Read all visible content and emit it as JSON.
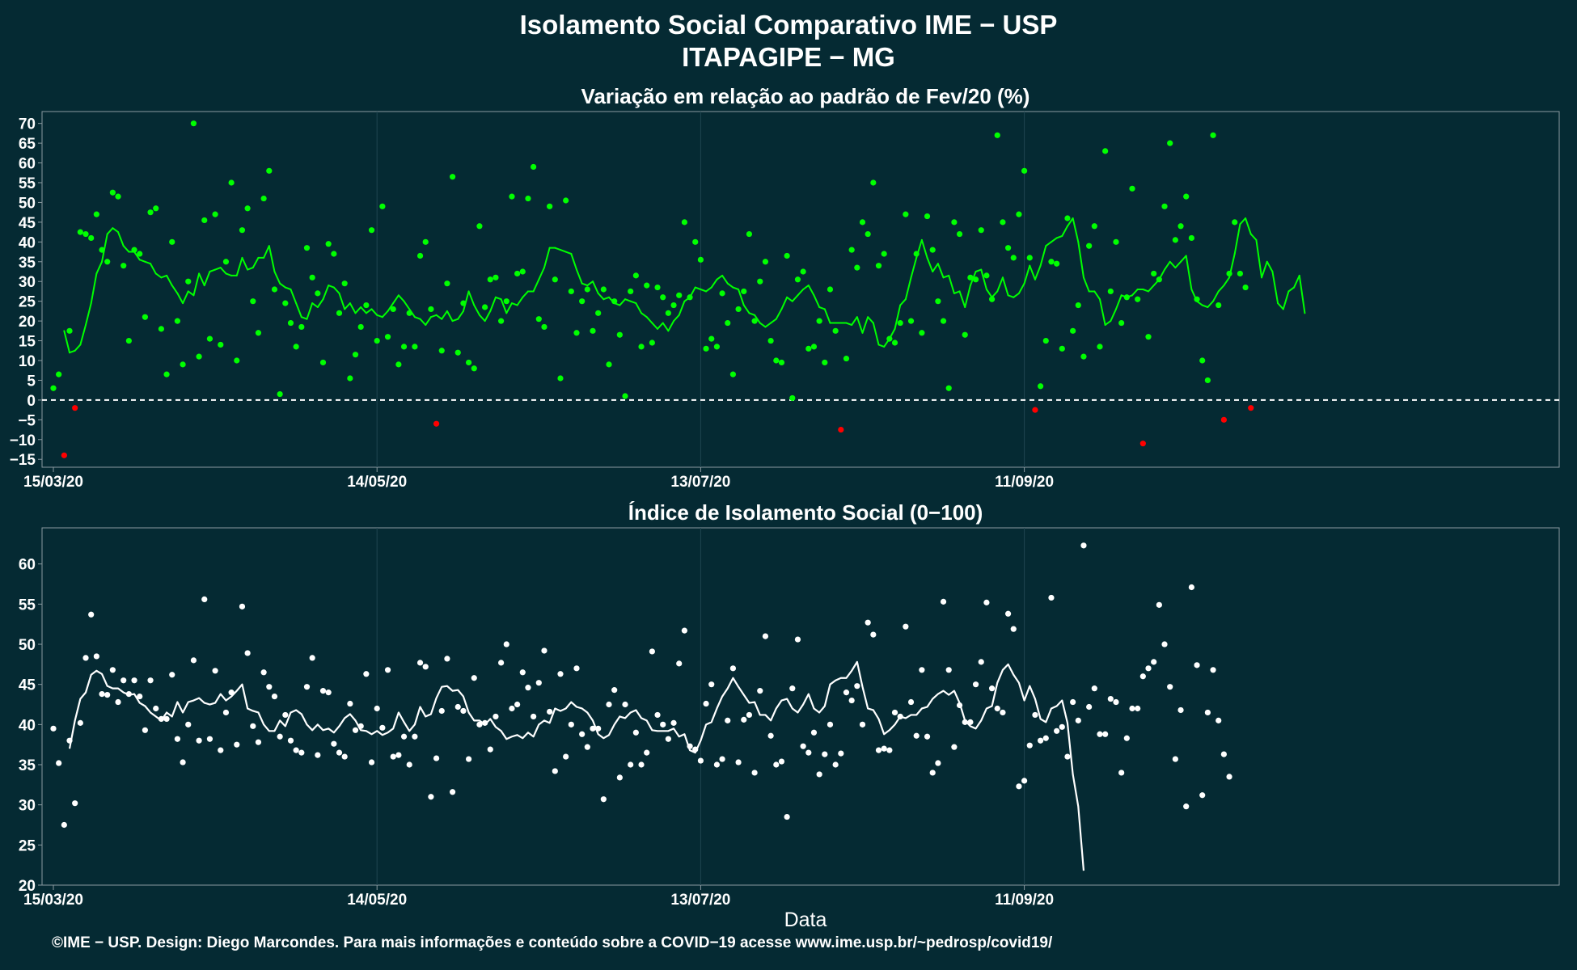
{
  "title": "Isolamento Social Comparativo IME − USP",
  "subtitle": "ITAPAGIPE − MG",
  "footer": "©IME − USP. Design: Diego Marcondes. Para mais informações e conteúdo sobre a COVID−19 acesse www.ime.usp.br/~pedrosp/covid19/",
  "colors": {
    "background": "#052a33",
    "positive": "#00ff00",
    "negative": "#ff0000",
    "index_series": "#ffffff",
    "panel_border": "#8a9aa0"
  },
  "chart_data": [
    {
      "type": "scatter",
      "title": "Variação em relação ao padrão de Fev/20 (%)",
      "xlabel": "",
      "ylabel": "",
      "x_start": "2020-03-15",
      "x_ticks": [
        "15/03/20",
        "14/05/20",
        "13/07/20",
        "11/09/20"
      ],
      "ylim": [
        -17,
        73
      ],
      "y_ticks": [
        -15,
        -10,
        -5,
        0,
        5,
        10,
        15,
        20,
        25,
        30,
        35,
        40,
        45,
        50,
        55,
        60,
        65,
        70
      ],
      "reference_line": 0,
      "grid": "vertical only",
      "points": [
        3,
        6.5,
        -14,
        17.5,
        -2,
        42.5,
        42,
        41,
        47,
        38,
        35,
        52.5,
        51.5,
        34,
        15,
        38,
        37,
        21,
        47.5,
        48.5,
        18,
        6.5,
        40,
        20,
        9,
        30,
        70,
        11,
        45.5,
        15.5,
        47,
        14,
        35,
        55,
        10,
        43,
        48.5,
        25,
        17,
        51,
        58,
        28,
        1.5,
        24.5,
        19.5,
        13.5,
        18.5,
        38.5,
        31,
        27,
        9.5,
        39.5,
        37,
        22,
        29.5,
        5.5,
        11.5,
        18.5,
        24,
        43,
        15,
        49,
        16,
        23,
        9,
        13.5,
        22,
        13.5,
        36.5,
        40,
        23,
        -6,
        12.5,
        29.5,
        56.5,
        12,
        24.5,
        9.5,
        8,
        44,
        23.5,
        30.5,
        31,
        20,
        25,
        51.5,
        32,
        32.5,
        51,
        59,
        20.5,
        18.5,
        49,
        30.5,
        5.5,
        50.5,
        27.5,
        17,
        25,
        28,
        17.5,
        22,
        28,
        9,
        25,
        16.5,
        1,
        27.5,
        31.5,
        13.5,
        29,
        14.5,
        28.5,
        26,
        22,
        24,
        26.5,
        45,
        26,
        40,
        35.5,
        13,
        15.5,
        13.5,
        27,
        19.5,
        6.5,
        23,
        27.5,
        42,
        20,
        30,
        35,
        15,
        10,
        9.5,
        36.5,
        0.5,
        30.5,
        32.5,
        13,
        13.5,
        20,
        9.5,
        28,
        17.5,
        -7.5,
        10.5,
        38,
        33.5,
        45,
        42,
        55,
        34,
        37,
        15.5,
        14.5,
        19.5,
        47,
        20,
        37,
        17,
        46.5,
        38,
        25,
        20,
        3,
        45,
        42,
        16.5,
        31,
        30.5,
        43,
        31.5,
        25.5,
        67,
        45,
        38.5,
        36,
        47,
        58,
        36,
        -2.5,
        3.5,
        15,
        35,
        34.5,
        13,
        46,
        17.5,
        24,
        11,
        39,
        44,
        13.5,
        63,
        27.5,
        40,
        19.5,
        26,
        53.5,
        25.5,
        -11,
        16,
        32,
        30.5,
        49,
        65,
        40.5,
        44,
        51.5,
        41,
        25.5,
        10,
        5,
        67,
        24,
        -5,
        32,
        45,
        32,
        28.5,
        -2
      ],
      "moving_average": [
        17.5,
        12,
        12.5,
        14,
        19,
        24.5,
        32,
        35,
        42,
        43.5,
        42.5,
        39,
        37.5,
        37.5,
        35.5,
        35,
        34.5,
        32,
        31,
        31.5,
        29,
        27,
        24.5,
        27.5,
        26.5,
        32,
        29,
        32.5,
        33,
        33.5,
        32,
        31.5,
        31.5,
        36,
        33,
        33.5,
        36,
        36,
        39,
        32.5,
        29.5,
        28.5,
        28,
        24.5,
        21,
        20.5,
        24.5,
        23.5,
        25.5,
        29,
        28.5,
        27,
        23,
        24.5,
        22,
        23.5,
        22,
        23,
        21.5,
        21,
        22.5,
        24.5,
        26.5,
        25,
        23,
        21,
        20.5,
        19,
        21,
        21.5,
        20.5,
        22.5,
        20,
        20.5,
        22.5,
        27.5,
        24,
        21.5,
        20,
        22.5,
        26,
        25.5,
        22,
        24.5,
        24,
        26,
        27.5,
        27.5,
        30.5,
        33.5,
        38.5,
        38.5,
        38,
        37.5,
        37,
        33,
        29.5,
        29,
        30,
        27,
        25.5,
        26,
        24.5,
        24,
        25.5,
        25,
        24.5,
        22,
        21,
        19.5,
        18,
        19.5,
        17.5,
        20,
        21.5,
        25,
        26,
        28.5,
        28,
        27.5,
        28.5,
        30.5,
        31.5,
        29.5,
        28.5,
        28,
        24,
        22,
        21.5,
        19.5,
        18.5,
        19.5,
        20.5,
        23,
        26,
        25,
        26.5,
        28,
        29,
        26.5,
        23.5,
        23,
        19.5,
        19.5,
        19.5,
        19.5,
        19,
        21,
        17,
        21,
        19.5,
        14,
        13.5,
        15.5,
        18,
        24,
        25.5,
        31,
        36,
        40.5,
        36,
        32.5,
        34.5,
        31,
        31.5,
        27,
        27.5,
        23.5,
        29,
        32.5,
        33,
        28,
        26,
        27.5,
        31,
        26.5,
        26,
        27,
        29.5,
        34,
        30.5,
        34,
        39,
        40,
        41,
        41.5,
        44,
        46,
        40,
        31,
        27.5,
        27.5,
        25.5,
        19,
        20,
        23,
        26.5,
        26,
        26.5,
        28,
        28,
        27.5,
        29,
        30.5,
        33,
        35,
        33.5,
        35,
        36.5,
        28,
        25,
        24,
        23.5,
        25,
        27.5,
        29,
        31,
        37,
        44.5,
        46,
        42,
        40.5,
        31,
        35,
        32.5,
        24.5,
        23,
        27.5,
        28.5,
        31.5,
        22
      ]
    },
    {
      "type": "scatter",
      "title": "Índice de Isolamento Social (0−100)",
      "xlabel": "Data",
      "ylabel": "",
      "x_start": "2020-03-15",
      "x_ticks": [
        "15/03/20",
        "14/05/20",
        "13/07/20",
        "11/09/20"
      ],
      "ylim": [
        20,
        64.5
      ],
      "y_ticks": [
        20,
        25,
        30,
        35,
        40,
        45,
        50,
        55,
        60
      ],
      "grid": "vertical only",
      "points": [
        39.5,
        35.2,
        27.5,
        38,
        30.2,
        40.2,
        48.3,
        53.7,
        48.5,
        43.8,
        43.7,
        46.8,
        42.8,
        45.5,
        43.8,
        45.5,
        43.5,
        39.3,
        45.5,
        42,
        40.7,
        40.7,
        46.2,
        38.2,
        35.3,
        40,
        48,
        38,
        55.6,
        38.2,
        46.7,
        36.8,
        41.5,
        44,
        37.5,
        54.7,
        48.9,
        39.8,
        37.8,
        46.5,
        44.7,
        43.5,
        38.5,
        41.2,
        38,
        36.8,
        36.5,
        44.7,
        48.3,
        36.2,
        44.2,
        44,
        37.6,
        36.5,
        36,
        42.6,
        39.3,
        39.8,
        46.3,
        35.3,
        42,
        39.6,
        46.8,
        36,
        36.2,
        38.5,
        35,
        38.5,
        47.7,
        47.2,
        31,
        35.8,
        41.7,
        48.2,
        31.6,
        42.2,
        41.7,
        35.7,
        45.8,
        40,
        40.2,
        36.9,
        41,
        47.7,
        50,
        42,
        42.5,
        46.5,
        44.6,
        41,
        45.2,
        49.2,
        41.6,
        34.2,
        46.3,
        36,
        40,
        47,
        38.8,
        37.2,
        39.5,
        39.5,
        30.7,
        42.5,
        44.3,
        33.4,
        42.5,
        35,
        39,
        35,
        36.5,
        49.1,
        41.2,
        40,
        38.2,
        40.2,
        47.6,
        51.7,
        37.3,
        36.9,
        35.5,
        42.6,
        45,
        35,
        35.7,
        40.5,
        47,
        35.3,
        40.6,
        41.2,
        34,
        44.2,
        51,
        38.6,
        35,
        35.4,
        28.5,
        44.5,
        50.6,
        37.3,
        36.5,
        39,
        33.8,
        36.3,
        40,
        35,
        36.4,
        44,
        43,
        44.8,
        40,
        52.7,
        51.2,
        36.8,
        37,
        36.8,
        41.5,
        41,
        52.2,
        42.8,
        38.6,
        46.8,
        38.5,
        34,
        35.2,
        55.3,
        46.8,
        37.2,
        42.4,
        40.3,
        40.3,
        45,
        47.8,
        55.2,
        44.5,
        42,
        41.5,
        53.8,
        51.9,
        32.3,
        33,
        37.4,
        41.2,
        38,
        38.3,
        55.8,
        39.2,
        39.7,
        36,
        42.8,
        40.5,
        62.3,
        42.2,
        44.5,
        38.8,
        38.8,
        43.2,
        42.8,
        34,
        38.3,
        42,
        42,
        46,
        47,
        47.8,
        54.9,
        50,
        44.7,
        35.7,
        41.8,
        29.8,
        57.1,
        47.4,
        31.2,
        41.5,
        46.8,
        40.5,
        36.3,
        33.5
      ],
      "moving_average": [
        37,
        40.5,
        43.2,
        44,
        46.2,
        46.7,
        46.3,
        44.8,
        44.5,
        44.5,
        44,
        43.7,
        43.8,
        42.7,
        42.3,
        41.5,
        41,
        40.5,
        41.5,
        41,
        42.8,
        41.5,
        42.8,
        43,
        43.3,
        42.7,
        42.5,
        42.7,
        43.8,
        43,
        43.5,
        44.2,
        45,
        42,
        41.7,
        41.5,
        40,
        39.2,
        39.2,
        40.5,
        39.8,
        41.5,
        41.8,
        41.3,
        40,
        39.3,
        40,
        39.3,
        39.5,
        39,
        39.8,
        40.8,
        41.3,
        40.5,
        39.3,
        39.2,
        38.8,
        39.2,
        38.7,
        39,
        39.5,
        41.5,
        40.3,
        39.2,
        40,
        42.2,
        41,
        41.3,
        43.3,
        44.7,
        44.8,
        44.2,
        44.3,
        43.5,
        41.5,
        40.5,
        40.5,
        40,
        40.7,
        39.7,
        39.2,
        38.2,
        38.5,
        38.7,
        38.3,
        39,
        38.5,
        40,
        40.5,
        40.2,
        42,
        41.7,
        42,
        42.8,
        42.2,
        42,
        41.5,
        40.5,
        38.8,
        38.3,
        38.7,
        40,
        41,
        40.8,
        41.5,
        41.8,
        40.8,
        40.5,
        39.3,
        39.2,
        39.2,
        39.2,
        39.5,
        38.5,
        38.8,
        36.8,
        36.5,
        38,
        40,
        40.3,
        42,
        43.5,
        44.5,
        45.8,
        44.7,
        43.7,
        42.7,
        42.8,
        41.2,
        41.2,
        40.5,
        42,
        43,
        43.2,
        42,
        41.5,
        42.5,
        43.8,
        42,
        41.5,
        42.3,
        45,
        45.5,
        45.8,
        45.8,
        46.7,
        47.8,
        44.7,
        42,
        41.8,
        40.7,
        38.8,
        39.3,
        40,
        41,
        40.8,
        41.2,
        41.2,
        42,
        42.2,
        43.2,
        43.8,
        44.2,
        43.7,
        44.2,
        42.7,
        40.5,
        39.8,
        39.5,
        40.5,
        42,
        42.3,
        45.2,
        46.8,
        47.5,
        46.2,
        45.2,
        43,
        44.8,
        43.2,
        40.7,
        40.3,
        42,
        42.3,
        43,
        40.2,
        33.8,
        29.8,
        21.8
      ]
    }
  ]
}
